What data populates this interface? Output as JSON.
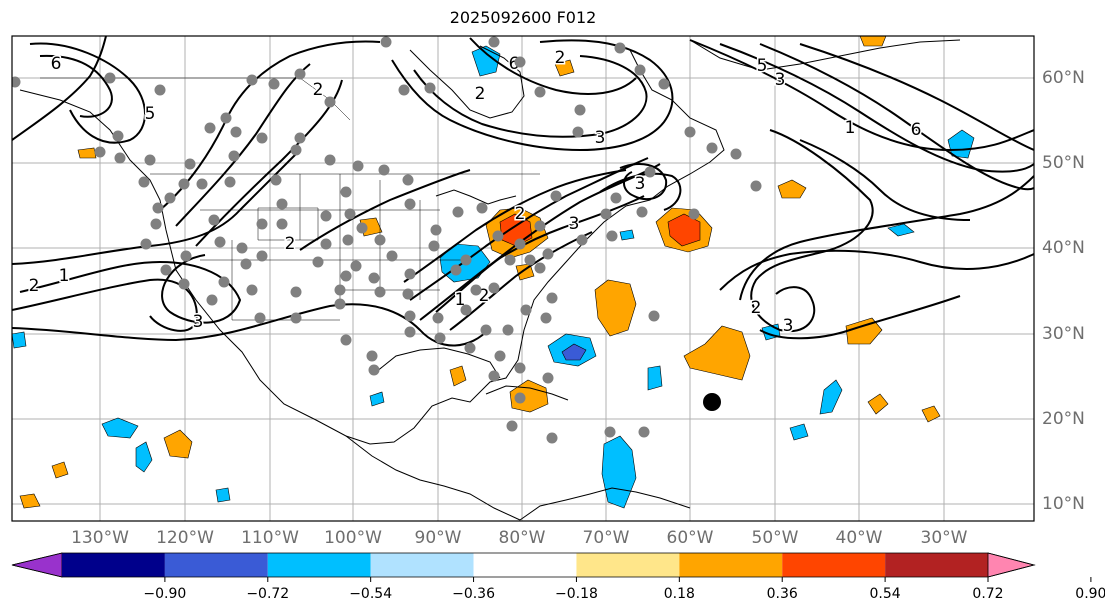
{
  "title": "2025092600 F012",
  "map": {
    "projection": "lat-lon",
    "lon_labels": [
      "130°W",
      "120°W",
      "110°W",
      "100°W",
      "90°W",
      "80°W",
      "70°W",
      "60°W",
      "50°W",
      "40°W",
      "30°W"
    ],
    "lat_labels": [
      "60°N",
      "50°N",
      "40°N",
      "30°N",
      "20°N",
      "10°N"
    ],
    "contour_labels": [
      "6",
      "5",
      "2",
      "1",
      "2",
      "3",
      "2",
      "3",
      "2",
      "1",
      "2",
      "2",
      "3",
      "6",
      "5",
      "3",
      "1",
      "6",
      "2",
      "3",
      "2",
      "3"
    ],
    "colors": {
      "contour": "#000000",
      "gridline": "#b0b0b0",
      "station_marker": "#808080",
      "target_marker": "#000000"
    }
  },
  "colorbar": {
    "ticks": [
      "−0.90",
      "−0.72",
      "−0.54",
      "−0.36",
      "−0.18",
      "0.18",
      "0.36",
      "0.54",
      "0.72",
      "0.90"
    ],
    "colors": [
      "#9932cc",
      "#00008b",
      "#3a5bd6",
      "#00bfff",
      "#b0e2ff",
      "#ffffff",
      "#ffe68a",
      "#ffa500",
      "#ff4500",
      "#b22222",
      "#ff85b0"
    ]
  }
}
